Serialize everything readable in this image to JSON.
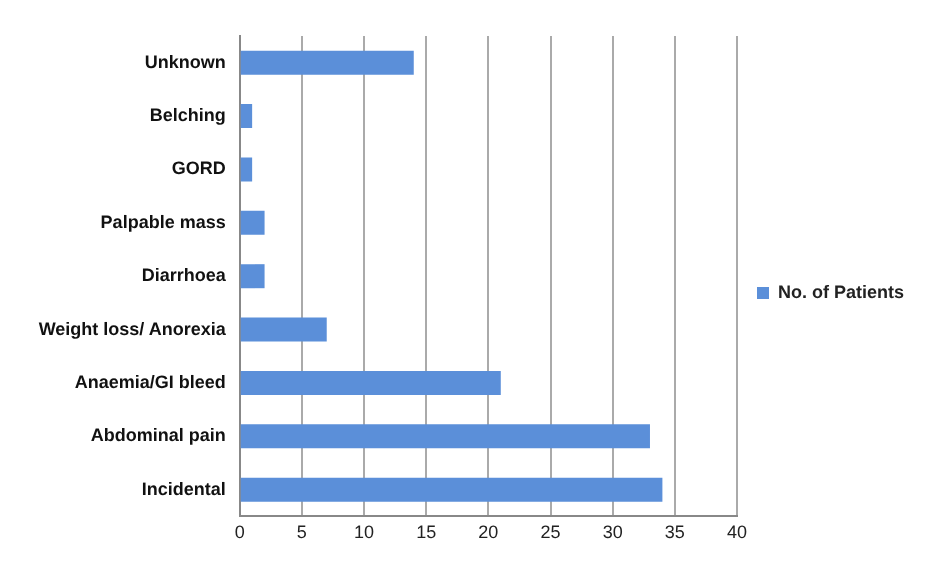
{
  "chart_data": {
    "type": "bar",
    "orientation": "horizontal",
    "categories": [
      "Unknown",
      "Belching",
      "GORD",
      "Palpable mass",
      "Diarrhoea",
      "Weight loss/ Anorexia",
      "Anaemia/GI bleed",
      "Abdominal pain",
      "Incidental"
    ],
    "series": [
      {
        "name": "No. of Patients",
        "color": "#5b8fd9",
        "values": [
          14,
          1,
          1,
          2,
          2,
          7,
          21,
          33,
          34
        ]
      }
    ],
    "xlim": [
      0,
      40
    ],
    "xticks": [
      0,
      5,
      10,
      15,
      20,
      25,
      30,
      35,
      40
    ],
    "grid": "x",
    "legend": "right"
  }
}
